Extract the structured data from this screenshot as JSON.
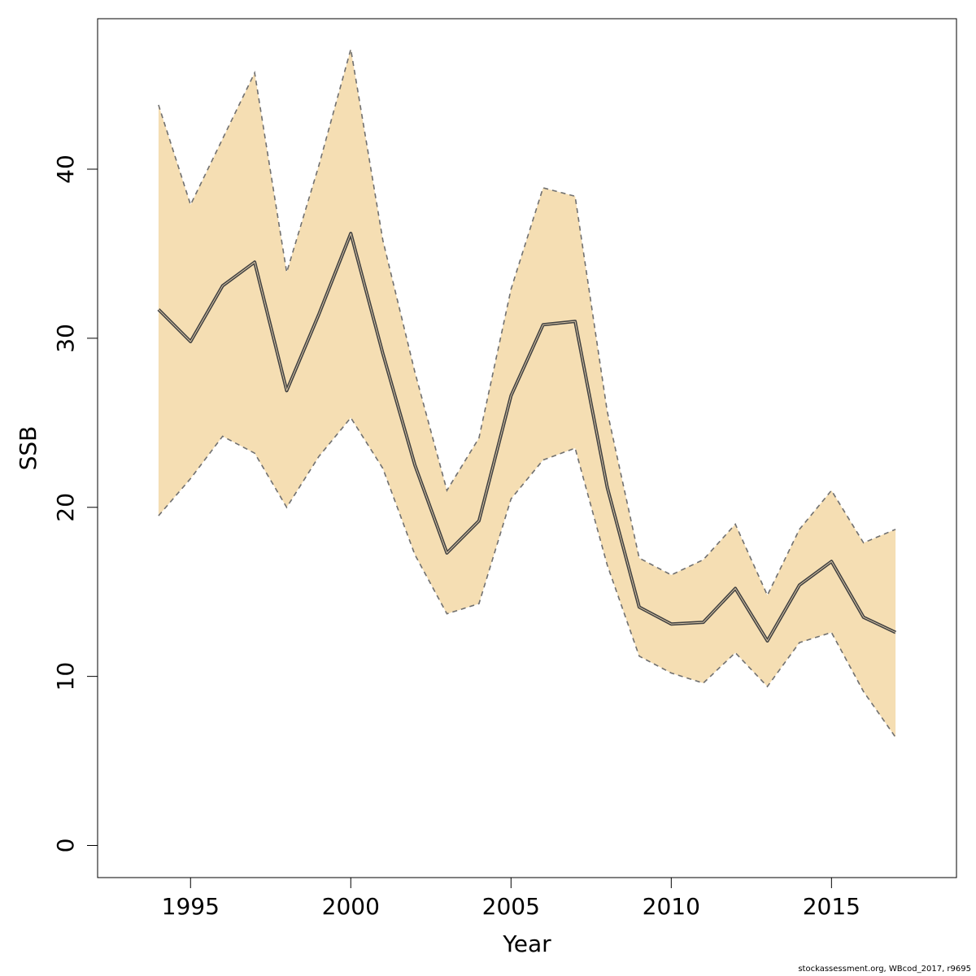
{
  "chart_data": {
    "type": "line",
    "xlabel": "Year",
    "ylabel": "SSB",
    "xlim": [
      1992.1,
      2018.9
    ],
    "ylim": [
      -1.9,
      48.9
    ],
    "x_ticks": [
      1995,
      2000,
      2005,
      2010,
      2015
    ],
    "y_ticks": [
      0,
      10,
      20,
      30,
      40
    ],
    "grid": false,
    "band_color": "#f5deb3",
    "line_color": "#404040",
    "bound_color": "#707070",
    "x": [
      1994,
      1995,
      1996,
      1997,
      1998,
      1999,
      2000,
      2001,
      2002,
      2003,
      2004,
      2005,
      2006,
      2007,
      2008,
      2009,
      2010,
      2011,
      2012,
      2013,
      2014,
      2015,
      2016,
      2017
    ],
    "series": [
      {
        "values": [
          31.7,
          29.8,
          33.1,
          34.5,
          26.9,
          31.4,
          36.2,
          29.1,
          22.5,
          17.3,
          19.2,
          26.6,
          30.8,
          31.0,
          21.2,
          14.1,
          13.1,
          13.2,
          15.2,
          12.1,
          15.4,
          16.8,
          13.5,
          12.6
        ]
      },
      {
        "values": [
          19.5,
          21.7,
          24.2,
          23.2,
          20.0,
          23.0,
          25.3,
          22.3,
          17.2,
          13.7,
          14.3,
          20.5,
          22.8,
          23.5,
          16.6,
          11.2,
          10.2,
          9.6,
          11.4,
          9.4,
          12.0,
          12.6,
          9.1,
          6.4
        ]
      },
      {
        "values": [
          43.8,
          37.9,
          41.8,
          45.7,
          33.9,
          40.2,
          47.1,
          35.8,
          28.0,
          21.0,
          24.1,
          32.9,
          38.9,
          38.4,
          25.7,
          17.0,
          16.0,
          16.9,
          19.0,
          14.8,
          18.7,
          21.0,
          17.9,
          18.7
        ]
      }
    ]
  },
  "footer": "stockassessment.org, WBcod_2017, r9695"
}
